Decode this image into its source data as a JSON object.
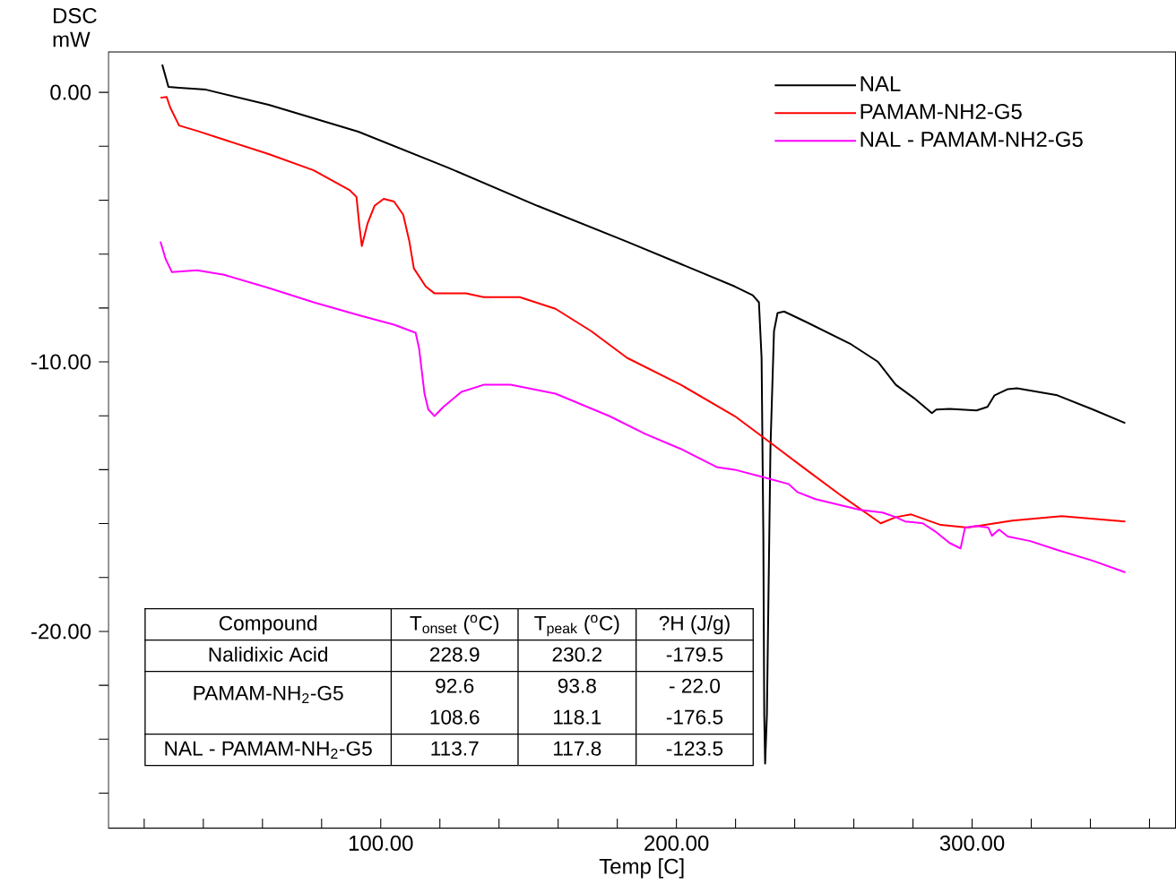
{
  "chart_data": {
    "type": "line",
    "xlabel": "Temp  [C]",
    "ylabel": "DSC mW",
    "xlim": [
      7.9,
      368.8
    ],
    "ylim": [
      -27.3,
      1.5
    ],
    "xticks": [
      {
        "value": 20,
        "label": null
      },
      {
        "value": 40,
        "label": null
      },
      {
        "value": 60,
        "label": null
      },
      {
        "value": 80,
        "label": null
      },
      {
        "value": 100,
        "label": "100.00"
      },
      {
        "value": 120,
        "label": null
      },
      {
        "value": 140,
        "label": null
      },
      {
        "value": 160,
        "label": null
      },
      {
        "value": 180,
        "label": null
      },
      {
        "value": 200,
        "label": "200.00"
      },
      {
        "value": 220,
        "label": null
      },
      {
        "value": 240,
        "label": null
      },
      {
        "value": 260,
        "label": null
      },
      {
        "value": 280,
        "label": null
      },
      {
        "value": 300,
        "label": "300.00"
      },
      {
        "value": 320,
        "label": null
      },
      {
        "value": 340,
        "label": null
      },
      {
        "value": 360,
        "label": null
      }
    ],
    "yticks": [
      {
        "value": -26,
        "label": null
      },
      {
        "value": -24,
        "label": null
      },
      {
        "value": -22,
        "label": null
      },
      {
        "value": -20,
        "label": "-20.00"
      },
      {
        "value": -18,
        "label": null
      },
      {
        "value": -16,
        "label": null
      },
      {
        "value": -14,
        "label": null
      },
      {
        "value": -12,
        "label": null
      },
      {
        "value": -10,
        "label": "-10.00"
      },
      {
        "value": -8,
        "label": null
      },
      {
        "value": -6,
        "label": null
      },
      {
        "value": -4,
        "label": null
      },
      {
        "value": -2,
        "label": null
      },
      {
        "value": 0,
        "label": "0.00"
      }
    ],
    "legend": "top right",
    "marker": "none",
    "line_style": "solid",
    "series": [
      {
        "name": "NAL",
        "color": "#000000",
        "x": [
          26.1,
          28.2,
          31.8,
          40.9,
          62.1,
          92.4,
          122.7,
          153.0,
          183.3,
          201.5,
          219.7,
          225.8,
          227.9,
          228.8,
          229.4,
          229.7,
          230.0,
          230.6,
          231.8,
          233.0,
          234.2,
          236.4,
          243.9,
          259.1,
          268.2,
          274.2,
          280.3,
          286.4,
          287.9,
          292.4,
          301.5,
          305.2,
          307.6,
          312.1,
          315.2,
          328.8,
          340.9,
          351.8
        ],
        "values": [
          1.03,
          0.2,
          0.17,
          0.1,
          -0.46,
          -1.46,
          -2.79,
          -4.21,
          -5.54,
          -6.37,
          -7.2,
          -7.53,
          -7.79,
          -9.85,
          -16.5,
          -23.1,
          -24.9,
          -23.1,
          -13.2,
          -8.86,
          -8.19,
          -8.13,
          -8.52,
          -9.35,
          -10.0,
          -10.85,
          -11.34,
          -11.9,
          -11.77,
          -11.74,
          -11.8,
          -11.67,
          -11.24,
          -11.01,
          -10.98,
          -11.24,
          -11.77,
          -12.27
        ]
      },
      {
        "name": "PAMAM-NH2-G5",
        "color": "#ff0000",
        "x": [
          25.5,
          27.6,
          28.8,
          31.8,
          37.9,
          62.1,
          77.3,
          89.4,
          91.8,
          92.7,
          93.6,
          95.5,
          97.9,
          101.0,
          104.5,
          107.6,
          109.7,
          111.2,
          115.2,
          118.2,
          128.8,
          134.8,
          147.0,
          159.1,
          171.2,
          183.3,
          201.5,
          219.7,
          231.8,
          243.9,
          256.1,
          269.1,
          274.2,
          279.4,
          289.4,
          298.5,
          313.6,
          330.3,
          351.8
        ],
        "values": [
          -0.2,
          -0.17,
          -0.56,
          -1.23,
          -1.43,
          -2.29,
          -2.89,
          -3.62,
          -3.88,
          -4.88,
          -5.7,
          -4.88,
          -4.21,
          -3.95,
          -4.05,
          -4.54,
          -5.54,
          -6.53,
          -7.2,
          -7.46,
          -7.46,
          -7.6,
          -7.6,
          -8.03,
          -8.86,
          -9.85,
          -10.85,
          -12.01,
          -13.0,
          -14.0,
          -14.99,
          -15.99,
          -15.76,
          -15.66,
          -16.05,
          -16.15,
          -15.89,
          -15.72,
          -15.92
        ]
      },
      {
        "name": "NAL - PAMAM-NH2-G5",
        "color": "#ff00ff",
        "x": [
          25.5,
          27.3,
          29.4,
          37.9,
          47.0,
          62.1,
          77.3,
          92.4,
          104.5,
          111.8,
          113.0,
          114.8,
          116.1,
          118.2,
          121.2,
          127.3,
          134.8,
          143.9,
          159.1,
          177.3,
          189.4,
          201.5,
          213.6,
          219.7,
          228.8,
          237.9,
          240.9,
          247.0,
          262.1,
          269.7,
          274.2,
          277.3,
          283.3,
          287.9,
          292.4,
          296.1,
          297.6,
          301.5,
          305.5,
          306.7,
          309.1,
          312.1,
          319.7,
          328.8,
          340.9,
          351.8
        ],
        "values": [
          -5.54,
          -6.2,
          -6.67,
          -6.6,
          -6.77,
          -7.26,
          -7.79,
          -8.26,
          -8.62,
          -8.92,
          -9.52,
          -11.18,
          -11.77,
          -12.01,
          -11.67,
          -11.11,
          -10.85,
          -10.85,
          -11.18,
          -12.01,
          -12.67,
          -13.23,
          -13.9,
          -14.0,
          -14.26,
          -14.53,
          -14.83,
          -15.09,
          -15.49,
          -15.59,
          -15.76,
          -15.92,
          -15.99,
          -16.32,
          -16.72,
          -16.92,
          -16.15,
          -16.09,
          -16.15,
          -16.45,
          -16.22,
          -16.48,
          -16.65,
          -16.98,
          -17.38,
          -17.81
        ]
      }
    ],
    "annotations": [
      "Compound",
      "T$_{onset}$ ($^{o}$C)",
      "T$_{peak}$ ($^{o}$C)",
      "?H (J/g)",
      "Nalidixic Acid",
      "228.9",
      "230.2",
      "-179.5",
      "PAMAM-NH$_{2}$-G5",
      "92.6",
      "93.8",
      "-  22.0",
      "108.6",
      "118.1",
      "-176.5",
      "NAL - PAMAM-NH$_{2}$-G5",
      "113.7",
      "117.8",
      "-123.5"
    ]
  }
}
